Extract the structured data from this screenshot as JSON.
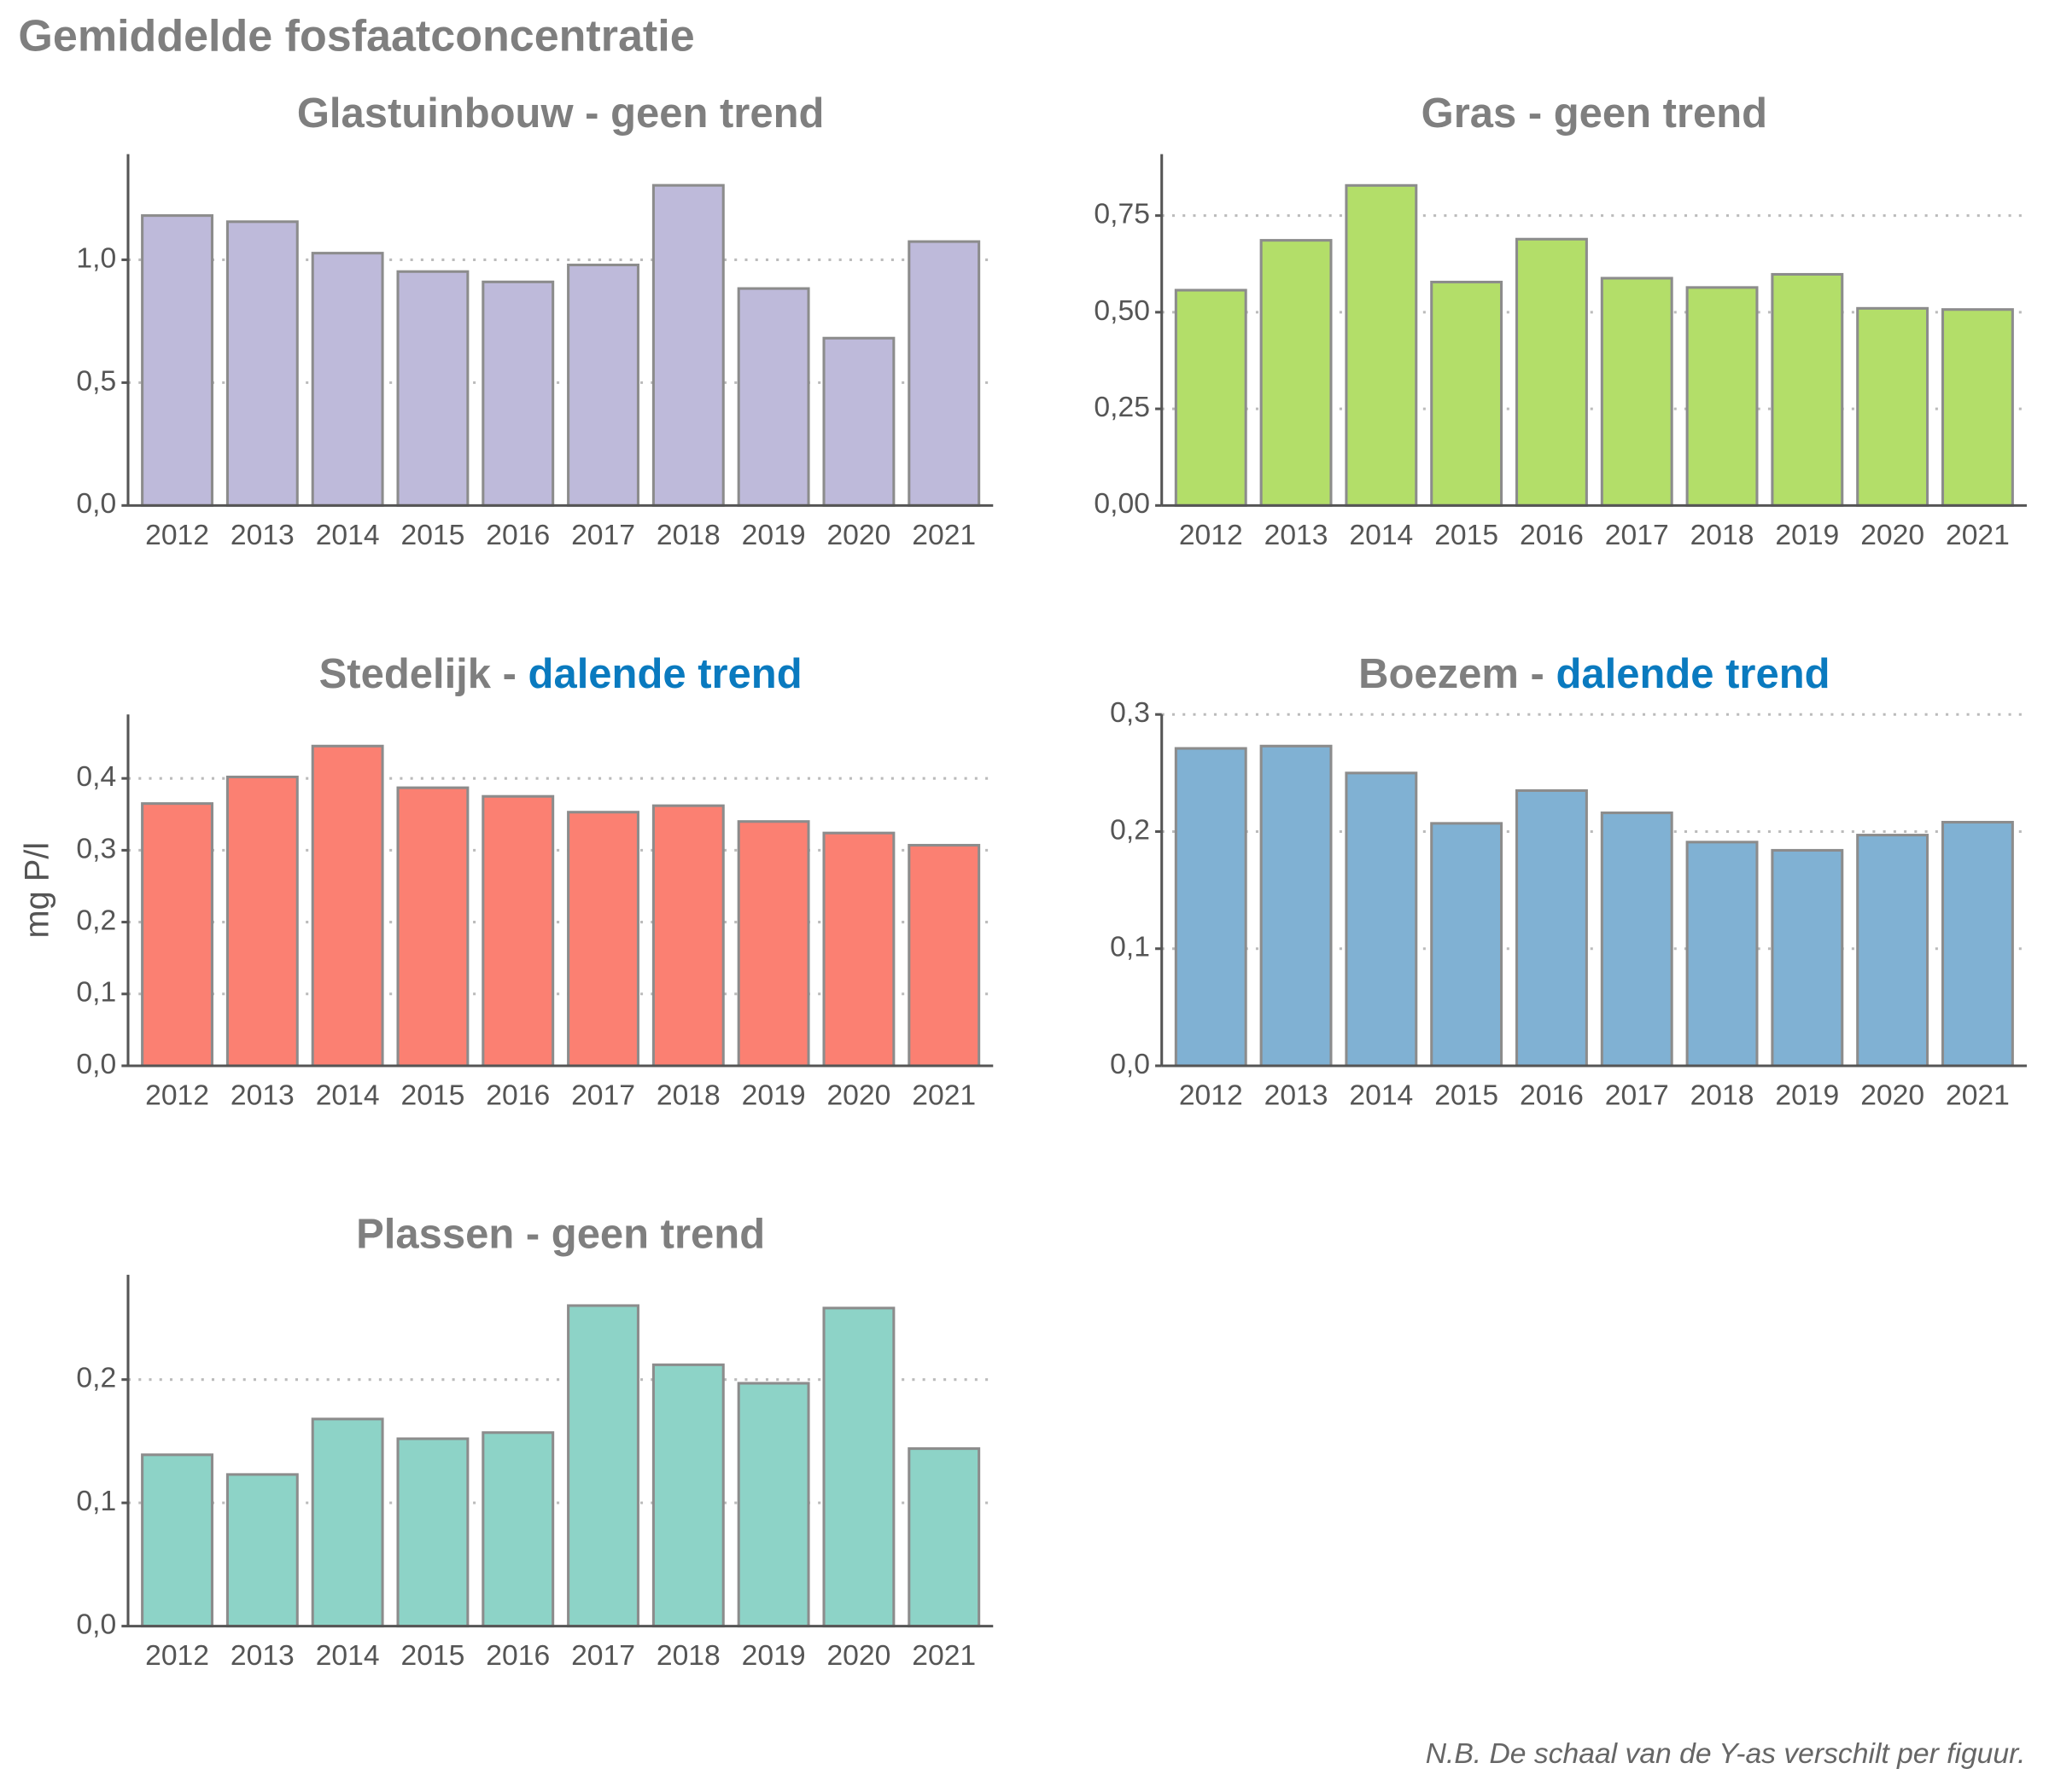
{
  "title": "Gemiddelde fosfaatconcentratie",
  "footnote": "N.B. De schaal van de Y-as verschilt per figuur.",
  "chart_data": [
    {
      "type": "bar",
      "title": "Glastuinbouw -",
      "trend": "geen trend",
      "trend_color": "#7f7f7f",
      "categories": [
        "2012",
        "2013",
        "2014",
        "2015",
        "2016",
        "2017",
        "2018",
        "2019",
        "2020",
        "2021"
      ],
      "values": [
        1.18,
        1.155,
        1.027,
        0.952,
        0.91,
        0.979,
        1.303,
        0.883,
        0.681,
        1.074
      ],
      "color": "#bebada",
      "ylim": [
        0,
        1.43
      ],
      "yticks": [
        {
          "value": 0,
          "label": "0,0"
        },
        {
          "value": 0.5,
          "label": "0,5"
        },
        {
          "value": 1,
          "label": "1,0"
        }
      ],
      "grid": true
    },
    {
      "type": "bar",
      "title": "Gras -",
      "trend": "geen trend",
      "trend_color": "#7f7f7f",
      "categories": [
        "2012",
        "2013",
        "2014",
        "2015",
        "2016",
        "2017",
        "2018",
        "2019",
        "2020",
        "2021"
      ],
      "values": [
        0.557,
        0.686,
        0.828,
        0.578,
        0.689,
        0.588,
        0.564,
        0.598,
        0.51,
        0.507
      ],
      "color": "#b3de69",
      "ylim": [
        0,
        0.909
      ],
      "yticks": [
        {
          "value": 0,
          "label": "0,00"
        },
        {
          "value": 0.25,
          "label": "0,25"
        },
        {
          "value": 0.5,
          "label": "0,50"
        },
        {
          "value": 0.75,
          "label": "0,75"
        }
      ],
      "grid": true
    },
    {
      "type": "bar",
      "title": "Stedelijk -",
      "trend": "dalende trend",
      "trend_color": "#0a7abf",
      "ylabel": "mg P/l",
      "categories": [
        "2012",
        "2013",
        "2014",
        "2015",
        "2016",
        "2017",
        "2018",
        "2019",
        "2020",
        "2021"
      ],
      "values": [
        0.365,
        0.402,
        0.445,
        0.387,
        0.375,
        0.353,
        0.362,
        0.34,
        0.324,
        0.307
      ],
      "color": "#fb8072",
      "ylim": [
        0,
        0.489
      ],
      "yticks": [
        {
          "value": 0,
          "label": "0,0"
        },
        {
          "value": 0.1,
          "label": "0,1"
        },
        {
          "value": 0.2,
          "label": "0,2"
        },
        {
          "value": 0.3,
          "label": "0,3"
        },
        {
          "value": 0.4,
          "label": "0,4"
        }
      ],
      "grid": true
    },
    {
      "type": "bar",
      "title": "Boezem -",
      "trend": "dalende trend",
      "trend_color": "#0a7abf",
      "categories": [
        "2012",
        "2013",
        "2014",
        "2015",
        "2016",
        "2017",
        "2018",
        "2019",
        "2020",
        "2021"
      ],
      "values": [
        0.271,
        0.273,
        0.25,
        0.207,
        0.235,
        0.216,
        0.191,
        0.184,
        0.197,
        0.208
      ],
      "color": "#80b1d3",
      "ylim": [
        0,
        0.3
      ],
      "yticks": [
        {
          "value": 0,
          "label": "0,0"
        },
        {
          "value": 0.1,
          "label": "0,1"
        },
        {
          "value": 0.2,
          "label": "0,2"
        },
        {
          "value": 0.3,
          "label": "0,3"
        }
      ],
      "grid": true
    },
    {
      "type": "bar",
      "title": "Plassen -",
      "trend": "geen trend",
      "trend_color": "#7f7f7f",
      "categories": [
        "2012",
        "2013",
        "2014",
        "2015",
        "2016",
        "2017",
        "2018",
        "2019",
        "2020",
        "2021"
      ],
      "values": [
        0.139,
        0.123,
        0.168,
        0.152,
        0.157,
        0.26,
        0.212,
        0.197,
        0.258,
        0.144
      ],
      "color": "#8dd3c7",
      "ylim": [
        0,
        0.285
      ],
      "yticks": [
        {
          "value": 0,
          "label": "0,0"
        },
        {
          "value": 0.1,
          "label": "0,1"
        },
        {
          "value": 0.2,
          "label": "0,2"
        }
      ],
      "grid": true
    }
  ]
}
